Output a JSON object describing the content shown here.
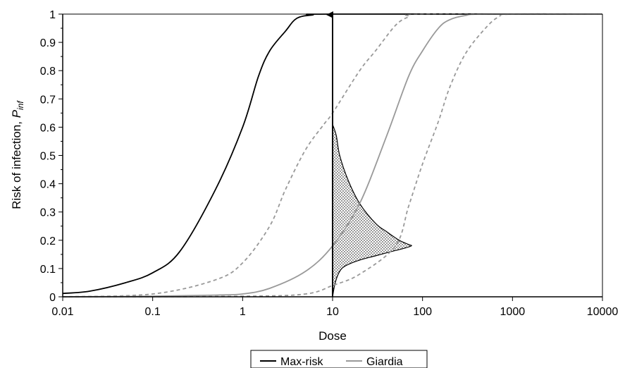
{
  "chart_data": {
    "type": "line",
    "title": "",
    "xlabel": "Dose",
    "ylabel": "Risk of infection, ",
    "ylabel_symbol": "P",
    "ylabel_subscript": "inf",
    "x_scale": "log",
    "xlim": [
      0.01,
      10000
    ],
    "ylim": [
      0,
      1
    ],
    "x_ticks": [
      {
        "value": 0.01,
        "label": "0.01"
      },
      {
        "value": 0.1,
        "label": "0.1"
      },
      {
        "value": 1,
        "label": "1"
      },
      {
        "value": 10,
        "label": "10"
      },
      {
        "value": 100,
        "label": "100"
      },
      {
        "value": 1000,
        "label": "1000"
      },
      {
        "value": 10000,
        "label": "10000"
      }
    ],
    "y_ticks": [
      {
        "value": 0,
        "label": "0"
      },
      {
        "value": 0.1,
        "label": "0.1"
      },
      {
        "value": 0.2,
        "label": "0.2"
      },
      {
        "value": 0.3,
        "label": "0.3"
      },
      {
        "value": 0.4,
        "label": "0.4"
      },
      {
        "value": 0.5,
        "label": "0.5"
      },
      {
        "value": 0.6,
        "label": "0.6"
      },
      {
        "value": 0.7,
        "label": "0.7"
      },
      {
        "value": 0.8,
        "label": "0.8"
      },
      {
        "value": 0.9,
        "label": "0.9"
      },
      {
        "value": 1,
        "label": "1"
      }
    ],
    "grid": false,
    "legend_position": "bottom-center",
    "series": [
      {
        "name": "Max-risk",
        "color": "#000000",
        "style": "solid",
        "points": [
          [
            0.01,
            0.012
          ],
          [
            0.02,
            0.02
          ],
          [
            0.05,
            0.05
          ],
          [
            0.1,
            0.085
          ],
          [
            0.2,
            0.16
          ],
          [
            0.5,
            0.38
          ],
          [
            1,
            0.6
          ],
          [
            1.5,
            0.78
          ],
          [
            2,
            0.87
          ],
          [
            3,
            0.94
          ],
          [
            4,
            0.985
          ],
          [
            6,
            0.997
          ],
          [
            10,
            1
          ],
          [
            10000,
            1
          ]
        ]
      },
      {
        "name": "Giardia",
        "color": "#999999",
        "style": "solid",
        "points": [
          [
            0.01,
            0
          ],
          [
            0.1,
            0.002
          ],
          [
            0.5,
            0.006
          ],
          [
            1,
            0.01
          ],
          [
            2,
            0.03
          ],
          [
            5,
            0.09
          ],
          [
            10,
            0.18
          ],
          [
            20,
            0.33
          ],
          [
            40,
            0.57
          ],
          [
            70,
            0.78
          ],
          [
            100,
            0.87
          ],
          [
            150,
            0.95
          ],
          [
            200,
            0.98
          ],
          [
            300,
            0.995
          ],
          [
            500,
            1
          ],
          [
            10000,
            1
          ]
        ]
      },
      {
        "name": "",
        "color": "#999999",
        "style": "dashed",
        "points": [
          [
            0.01,
            0
          ],
          [
            0.1,
            0.01
          ],
          [
            0.5,
            0.06
          ],
          [
            1,
            0.12
          ],
          [
            2,
            0.25
          ],
          [
            3,
            0.38
          ],
          [
            5,
            0.52
          ],
          [
            8,
            0.61
          ],
          [
            10,
            0.65
          ],
          [
            20,
            0.8
          ],
          [
            30,
            0.87
          ],
          [
            50,
            0.96
          ],
          [
            70,
            0.99
          ],
          [
            100,
            1
          ],
          [
            10000,
            1
          ]
        ]
      },
      {
        "name": "",
        "color": "#999999",
        "style": "dashed",
        "points": [
          [
            0.01,
            0
          ],
          [
            1,
            0.002
          ],
          [
            5,
            0.01
          ],
          [
            10,
            0.04
          ],
          [
            20,
            0.08
          ],
          [
            50,
            0.18
          ],
          [
            70,
            0.32
          ],
          [
            100,
            0.47
          ],
          [
            150,
            0.62
          ],
          [
            200,
            0.74
          ],
          [
            300,
            0.86
          ],
          [
            500,
            0.95
          ],
          [
            700,
            0.99
          ],
          [
            1000,
            1
          ],
          [
            10000,
            1
          ]
        ]
      }
    ],
    "distribution": {
      "fill": "dotted",
      "base_x": 10,
      "points": [
        [
          10,
          0
        ],
        [
          10.7,
          0.05
        ],
        [
          12,
          0.09
        ],
        [
          14,
          0.11
        ],
        [
          20,
          0.13
        ],
        [
          30,
          0.145
        ],
        [
          45,
          0.16
        ],
        [
          60,
          0.17
        ],
        [
          75,
          0.18
        ],
        [
          70,
          0.185
        ],
        [
          55,
          0.2
        ],
        [
          40,
          0.23
        ],
        [
          30,
          0.26
        ],
        [
          20,
          0.33
        ],
        [
          15,
          0.41
        ],
        [
          12,
          0.5
        ],
        [
          11,
          0.57
        ],
        [
          10,
          0.61
        ]
      ]
    },
    "annotations": [
      {
        "type": "arrow",
        "x": 10,
        "y_from": 0,
        "y_to": 1,
        "color": "#000000"
      }
    ]
  }
}
